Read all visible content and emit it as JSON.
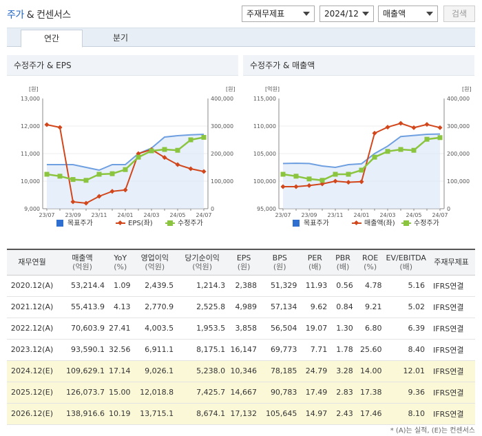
{
  "header": {
    "title_main": "주가",
    "title_rest": "& 컨센서스",
    "select_std": "주재무제표",
    "select_period": "2024/12",
    "select_metric": "매출액",
    "search_label": "검색"
  },
  "tabs": [
    {
      "label": "연간",
      "active": true
    },
    {
      "label": "분기",
      "active": false
    }
  ],
  "chart_data": [
    {
      "type": "line",
      "title": "수정주가 & EPS",
      "left_unit": "[원]",
      "right_unit": "[원]",
      "x": [
        "23/07",
        "23/08",
        "23/09",
        "23/10",
        "23/11",
        "23/12",
        "24/01",
        "24/02",
        "24/03",
        "24/04",
        "24/05",
        "24/06",
        "24/07"
      ],
      "x_tick_labels": [
        "23/07",
        "23/09",
        "23/11",
        "24/01",
        "24/03",
        "24/05",
        "24/07"
      ],
      "left_ticks": [
        "13,000",
        "12,000",
        "11,000",
        "10,000",
        "9,000"
      ],
      "right_ticks": [
        "400,000",
        "300,000",
        "200,000",
        "100,000",
        "0"
      ],
      "ylim_left": [
        9000,
        13000
      ],
      "ylim_right": [
        0,
        400000
      ],
      "series": [
        {
          "name": "목표주가",
          "axis": "left",
          "color": "#6e9fe0",
          "values": [
            10600,
            10600,
            10600,
            10500,
            10400,
            10600,
            10600,
            11000,
            11200,
            11600,
            11650,
            11680,
            11700
          ]
        },
        {
          "name": "EPS(좌)",
          "axis": "left",
          "color": "#d2461b",
          "values": [
            12050,
            11950,
            9250,
            9200,
            9450,
            9630,
            9680,
            11000,
            11150,
            10860,
            10600,
            10450,
            10350
          ]
        },
        {
          "name": "수정주가",
          "axis": "left",
          "color": "#8bc53f",
          "values": [
            10250,
            10180,
            10060,
            10030,
            10250,
            10270,
            10420,
            10870,
            11100,
            11150,
            11120,
            11500,
            11590
          ]
        }
      ],
      "legend": [
        "목표주가",
        "EPS(좌)",
        "수정주가"
      ]
    },
    {
      "type": "line",
      "title": "수정주가 & 매출액",
      "left_unit": "[억원]",
      "right_unit": "[원]",
      "x": [
        "23/07",
        "23/08",
        "23/09",
        "23/10",
        "23/11",
        "23/12",
        "24/01",
        "24/02",
        "24/03",
        "24/04",
        "24/05",
        "24/06",
        "24/07"
      ],
      "x_tick_labels": [
        "23/07",
        "23/09",
        "23/11",
        "24/01",
        "24/03",
        "24/05",
        "24/07"
      ],
      "left_ticks": [
        "115,000",
        "110,000",
        "105,000",
        "100,000",
        "95,000"
      ],
      "right_ticks": [
        "400,000",
        "300,000",
        "200,000",
        "100,000",
        "0"
      ],
      "ylim_left": [
        95000,
        115000
      ],
      "ylim_right": [
        0,
        400000
      ],
      "series": [
        {
          "name": "목표주가",
          "axis": "right",
          "color": "#6e9fe0",
          "values": [
            164000,
            165000,
            164000,
            155000,
            150000,
            160000,
            163000,
            200000,
            227000,
            262000,
            266000,
            270000,
            271000
          ]
        },
        {
          "name": "매출액(좌)",
          "axis": "left",
          "color": "#d2461b",
          "values": [
            99000,
            99000,
            99200,
            99500,
            100000,
            99800,
            99900,
            108700,
            109800,
            110500,
            109700,
            110300,
            109700
          ]
        },
        {
          "name": "수정주가",
          "axis": "right",
          "color": "#8bc53f",
          "values": [
            125000,
            118000,
            108000,
            103000,
            125000,
            125000,
            140000,
            187000,
            208000,
            215000,
            212000,
            252000,
            258000
          ]
        }
      ],
      "legend": [
        "목표주가",
        "매출액(좌)",
        "수정주가"
      ]
    }
  ],
  "table": {
    "headers": [
      {
        "label": "재무연월",
        "unit": ""
      },
      {
        "label": "매출액",
        "unit": "(억원)"
      },
      {
        "label": "YoY",
        "unit": "(%)"
      },
      {
        "label": "영업이익",
        "unit": "(억원)"
      },
      {
        "label": "당기순이익",
        "unit": "(억원)"
      },
      {
        "label": "EPS",
        "unit": "(원)"
      },
      {
        "label": "BPS",
        "unit": "(원)"
      },
      {
        "label": "PER",
        "unit": "(배)"
      },
      {
        "label": "PBR",
        "unit": "(배)"
      },
      {
        "label": "ROE",
        "unit": "(%)"
      },
      {
        "label": "EV/EBITDA",
        "unit": "(배)"
      },
      {
        "label": "주재무제표",
        "unit": ""
      }
    ],
    "rows": [
      {
        "est": false,
        "cells": [
          "2020.12(A)",
          "53,214.4",
          "1.09",
          "2,439.5",
          "1,214.3",
          "2,388",
          "51,329",
          "11.93",
          "0.56",
          "4.78",
          "5.16",
          "IFRS연결"
        ]
      },
      {
        "est": false,
        "cells": [
          "2021.12(A)",
          "55,413.9",
          "4.13",
          "2,770.9",
          "2,525.8",
          "4,989",
          "57,134",
          "9.62",
          "0.84",
          "9.21",
          "5.02",
          "IFRS연결"
        ]
      },
      {
        "est": false,
        "cells": [
          "2022.12(A)",
          "70,603.9",
          "27.41",
          "4,003.5",
          "1,953.5",
          "3,858",
          "56,504",
          "19.07",
          "1.30",
          "6.80",
          "6.39",
          "IFRS연결"
        ]
      },
      {
        "est": false,
        "cells": [
          "2023.12(A)",
          "93,590.1",
          "32.56",
          "6,911.1",
          "8,175.1",
          "16,147",
          "69,773",
          "7.71",
          "1.78",
          "25.60",
          "8.40",
          "IFRS연결"
        ]
      },
      {
        "est": true,
        "cells": [
          "2024.12(E)",
          "109,629.1",
          "17.14",
          "9,026.1",
          "5,238.0",
          "10,346",
          "78,185",
          "24.79",
          "3.28",
          "14.00",
          "12.01",
          "IFRS연결"
        ]
      },
      {
        "est": true,
        "cells": [
          "2025.12(E)",
          "126,073.7",
          "15.00",
          "12,018.8",
          "7,425.7",
          "14,667",
          "90,783",
          "17.49",
          "2.83",
          "17.38",
          "9.36",
          "IFRS연결"
        ]
      },
      {
        "est": true,
        "cells": [
          "2026.12(E)",
          "138,916.6",
          "10.19",
          "13,715.1",
          "8,674.1",
          "17,132",
          "105,645",
          "14.97",
          "2.43",
          "17.46",
          "8.10",
          "IFRS연결"
        ]
      }
    ]
  },
  "note": "* (A)는 실적, (E)는 컨센서스"
}
